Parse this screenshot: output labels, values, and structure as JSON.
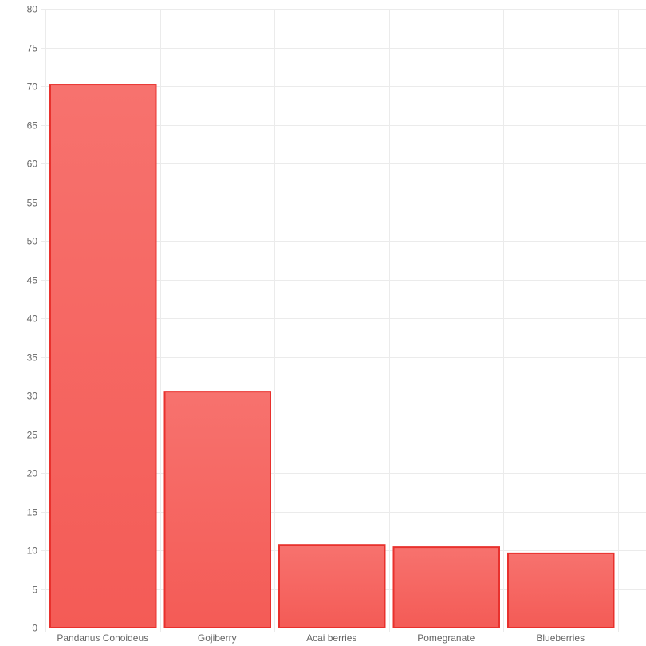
{
  "chart_data": {
    "type": "bar",
    "categories": [
      "Pandanus Conoideus",
      "Gojiberry",
      "Acai berries",
      "Pomegranate",
      "Blueberries"
    ],
    "values": [
      70.2,
      30.5,
      10.7,
      10.4,
      9.6
    ],
    "ylim": [
      0,
      80
    ],
    "yticks": [
      0,
      5,
      10,
      15,
      20,
      25,
      30,
      35,
      40,
      45,
      50,
      55,
      60,
      65,
      70,
      75,
      80
    ],
    "grid": true,
    "legend": "none",
    "colors": {
      "bar_fill_top": "#f7726e",
      "bar_fill_bottom": "#f45b56",
      "bar_border": "#e8312d",
      "grid": "#ebebeb",
      "tick_text": "#666666"
    }
  }
}
